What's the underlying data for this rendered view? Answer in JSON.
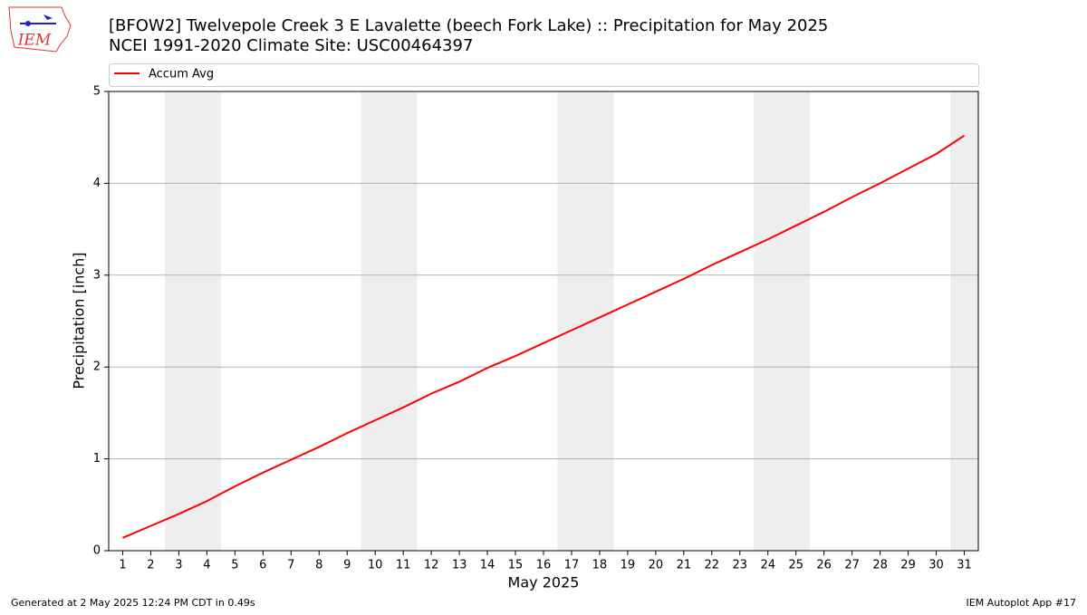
{
  "logo": "IEM",
  "footer_left": "Generated at 2 May 2025 12:24 PM CDT in 0.49s",
  "footer_right": "IEM Autoplot App #17",
  "chart_data": {
    "type": "line",
    "title": "[BFOW2] Twelvepole Creek 3 E Lavalette (beech Fork Lake) :: Precipitation for May 2025",
    "subtitle": "NCEI 1991-2020 Climate Site: USC00464397",
    "xlabel": "May 2025",
    "ylabel": "Precipitation [inch]",
    "x": [
      1,
      2,
      3,
      4,
      5,
      6,
      7,
      8,
      9,
      10,
      11,
      12,
      13,
      14,
      15,
      16,
      17,
      18,
      19,
      20,
      21,
      22,
      23,
      24,
      25,
      26,
      27,
      28,
      29,
      30,
      31
    ],
    "series": [
      {
        "name": "Accum Avg",
        "color": "#ff0000",
        "values": [
          0.14,
          0.27,
          0.4,
          0.54,
          0.7,
          0.85,
          0.99,
          1.13,
          1.28,
          1.42,
          1.56,
          1.71,
          1.84,
          1.99,
          2.12,
          2.26,
          2.4,
          2.54,
          2.68,
          2.82,
          2.96,
          3.11,
          3.25,
          3.39,
          3.54,
          3.69,
          3.85,
          4.0,
          4.16,
          4.32,
          4.52
        ]
      }
    ],
    "xlim": [
      0.5,
      31.5
    ],
    "ylim": [
      0,
      5
    ],
    "xticks": [
      1,
      2,
      3,
      4,
      5,
      6,
      7,
      8,
      9,
      10,
      11,
      12,
      13,
      14,
      15,
      16,
      17,
      18,
      19,
      20,
      21,
      22,
      23,
      24,
      25,
      26,
      27,
      28,
      29,
      30,
      31
    ],
    "yticks": [
      0,
      1,
      2,
      3,
      4,
      5
    ],
    "grid": "y",
    "shaded_ranges": [
      [
        2.5,
        4.5
      ],
      [
        9.5,
        11.5
      ],
      [
        16.5,
        18.5
      ],
      [
        23.5,
        25.5
      ],
      [
        30.5,
        31.5
      ]
    ],
    "shade_color": "#eeeeee",
    "legend": "top"
  }
}
